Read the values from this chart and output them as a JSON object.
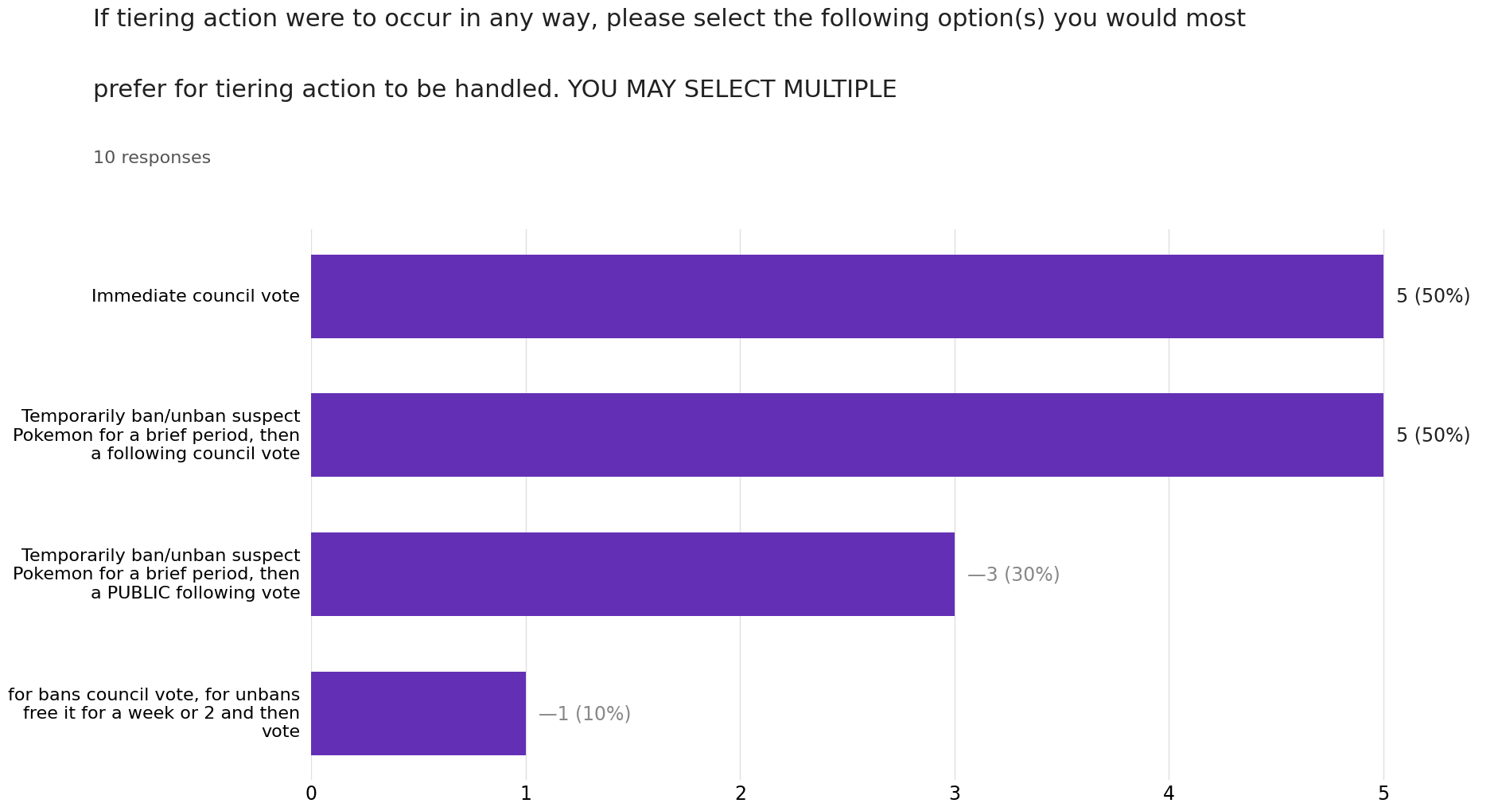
{
  "title_line1": "If tiering action were to occur in any way, please select the following option(s) you would most",
  "title_line2": "prefer for tiering action to be handled. YOU MAY SELECT MULTIPLE",
  "subtitle": "10 responses",
  "categories": [
    "Immediate council vote",
    "Temporarily ban/unban suspect\nPokemon for a brief period, then\na following council vote",
    "Temporarily ban/unban suspect\nPokemon for a brief period, then\na PUBLIC following vote",
    "for bans council vote, for unbans\nfree it for a week or 2 and then\nvote"
  ],
  "values": [
    5,
    5,
    3,
    1
  ],
  "labels": [
    "5 (50%)",
    "5 (50%)",
    "3 (30%)",
    "1 (10%)"
  ],
  "label_has_dash": [
    false,
    false,
    true,
    true
  ],
  "bar_color": "#6330b5",
  "background_color": "#ffffff",
  "xlim": [
    0,
    5.5
  ],
  "xticks": [
    0,
    1,
    2,
    3,
    4,
    5
  ],
  "title_fontsize": 22,
  "subtitle_fontsize": 16,
  "label_fontsize": 17,
  "tick_fontsize": 17,
  "category_fontsize": 16,
  "grid_color": "#e0e0e0"
}
